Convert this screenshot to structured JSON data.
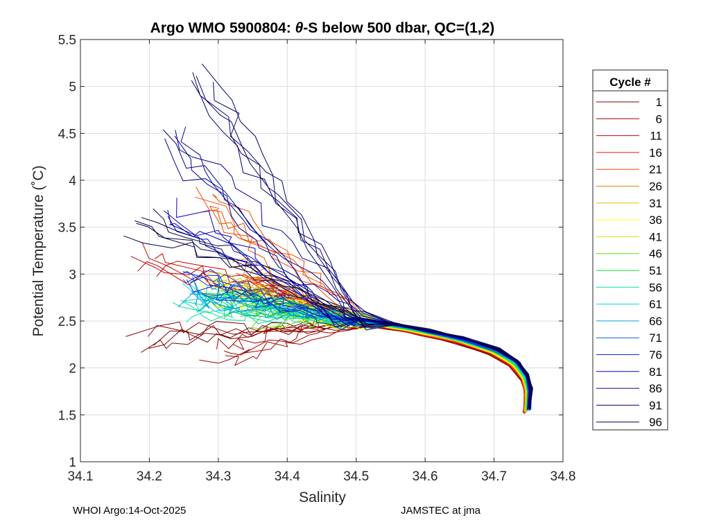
{
  "chart_data": {
    "type": "line",
    "title_prefix": "Argo WMO 5900804: ",
    "title_theta": "θ",
    "title_suffix": "-S below 500 dbar,  QC=(1,2)",
    "xlabel": "Salinity",
    "ylabel": "Potential Temperature (˚C)",
    "xlim": [
      34.1,
      34.8
    ],
    "ylim": [
      1,
      5.5
    ],
    "xticks": [
      "34.1",
      "34.2",
      "34.3",
      "34.4",
      "34.5",
      "34.6",
      "34.7",
      "34.8"
    ],
    "yticks": [
      "1",
      "1.5",
      "2",
      "2.5",
      "3",
      "3.5",
      "4",
      "4.5",
      "5",
      "5.5"
    ],
    "grid": true,
    "legend_title": "Cycle #",
    "legend_position": "right-outside",
    "series": [
      {
        "name": "1",
        "color": "#7f0000",
        "surface": [
          34.195,
          2.35
        ]
      },
      {
        "name": "6",
        "color": "#a00000",
        "surface": [
          34.3,
          2.15
        ]
      },
      {
        "name": "11",
        "color": "#c80000",
        "surface": [
          34.19,
          3.18
        ]
      },
      {
        "name": "16",
        "color": "#e01800",
        "surface": [
          34.35,
          2.95
        ]
      },
      {
        "name": "21",
        "color": "#f04a00",
        "surface": [
          34.28,
          3.75
        ]
      },
      {
        "name": "26",
        "color": "#f08000",
        "surface": [
          34.33,
          3.05
        ]
      },
      {
        "name": "31",
        "color": "#e8c000",
        "surface": [
          34.3,
          2.9
        ]
      },
      {
        "name": "36",
        "color": "#ffff00",
        "surface": [
          34.28,
          2.85
        ]
      },
      {
        "name": "41",
        "color": "#b0f000",
        "surface": [
          34.34,
          2.8
        ]
      },
      {
        "name": "46",
        "color": "#60e000",
        "surface": [
          34.35,
          2.55
        ]
      },
      {
        "name": "51",
        "color": "#00e030",
        "surface": [
          34.3,
          2.75
        ]
      },
      {
        "name": "56",
        "color": "#00e0a0",
        "surface": [
          34.25,
          2.7
        ]
      },
      {
        "name": "61",
        "color": "#00d8e0",
        "surface": [
          34.27,
          2.75
        ]
      },
      {
        "name": "66",
        "color": "#00a0d0",
        "surface": [
          34.26,
          2.65
        ]
      },
      {
        "name": "71",
        "color": "#0060c0",
        "surface": [
          34.28,
          2.9
        ]
      },
      {
        "name": "76",
        "color": "#0030d0",
        "surface": [
          34.25,
          3.0
        ]
      },
      {
        "name": "81",
        "color": "#0000c0",
        "surface": [
          34.24,
          3.7
        ]
      },
      {
        "name": "86",
        "color": "#000098",
        "surface": [
          34.23,
          4.45
        ]
      },
      {
        "name": "91",
        "color": "#000070",
        "surface": [
          34.27,
          5.12
        ]
      },
      {
        "name": "96",
        "color": "#00004a",
        "surface": [
          34.19,
          3.62
        ]
      }
    ],
    "deep_envelope": [
      [
        34.5,
        2.5
      ],
      [
        34.55,
        2.45
      ],
      [
        34.6,
        2.38
      ],
      [
        34.65,
        2.3
      ],
      [
        34.7,
        2.18
      ],
      [
        34.73,
        2.05
      ],
      [
        34.745,
        1.9
      ],
      [
        34.75,
        1.75
      ],
      [
        34.748,
        1.55
      ]
    ]
  },
  "footer": {
    "left": "WHOI Argo:14-Oct-2025",
    "right": "JAMSTEC at jma"
  }
}
